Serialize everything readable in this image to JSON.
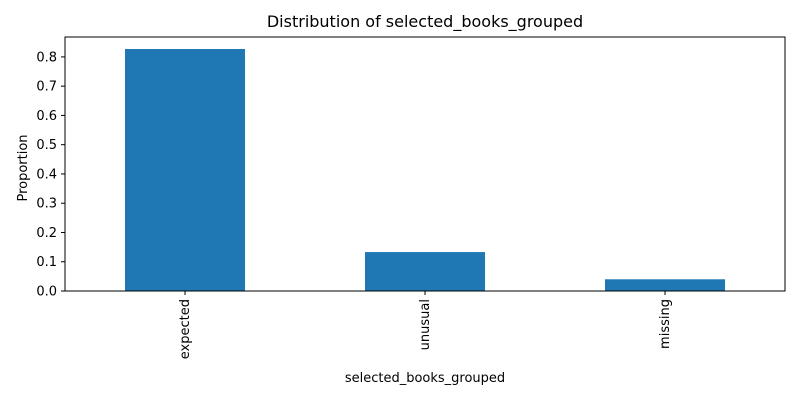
{
  "chart_data": {
    "type": "bar",
    "title": "Distribution of selected_books_grouped",
    "xlabel": "selected_books_grouped",
    "ylabel": "Proportion",
    "categories": [
      "expected",
      "unusual",
      "missing"
    ],
    "values": [
      0.827,
      0.133,
      0.04
    ],
    "ylim": [
      0,
      0.868
    ],
    "yticks": [
      0.0,
      0.1,
      0.2,
      0.3,
      0.4,
      0.5,
      0.6,
      0.7,
      0.8
    ],
    "ytick_labels": [
      "0.0",
      "0.1",
      "0.2",
      "0.3",
      "0.4",
      "0.5",
      "0.6",
      "0.7",
      "0.8"
    ],
    "bar_color": "#1f77b4",
    "grid": false,
    "legend": false
  }
}
